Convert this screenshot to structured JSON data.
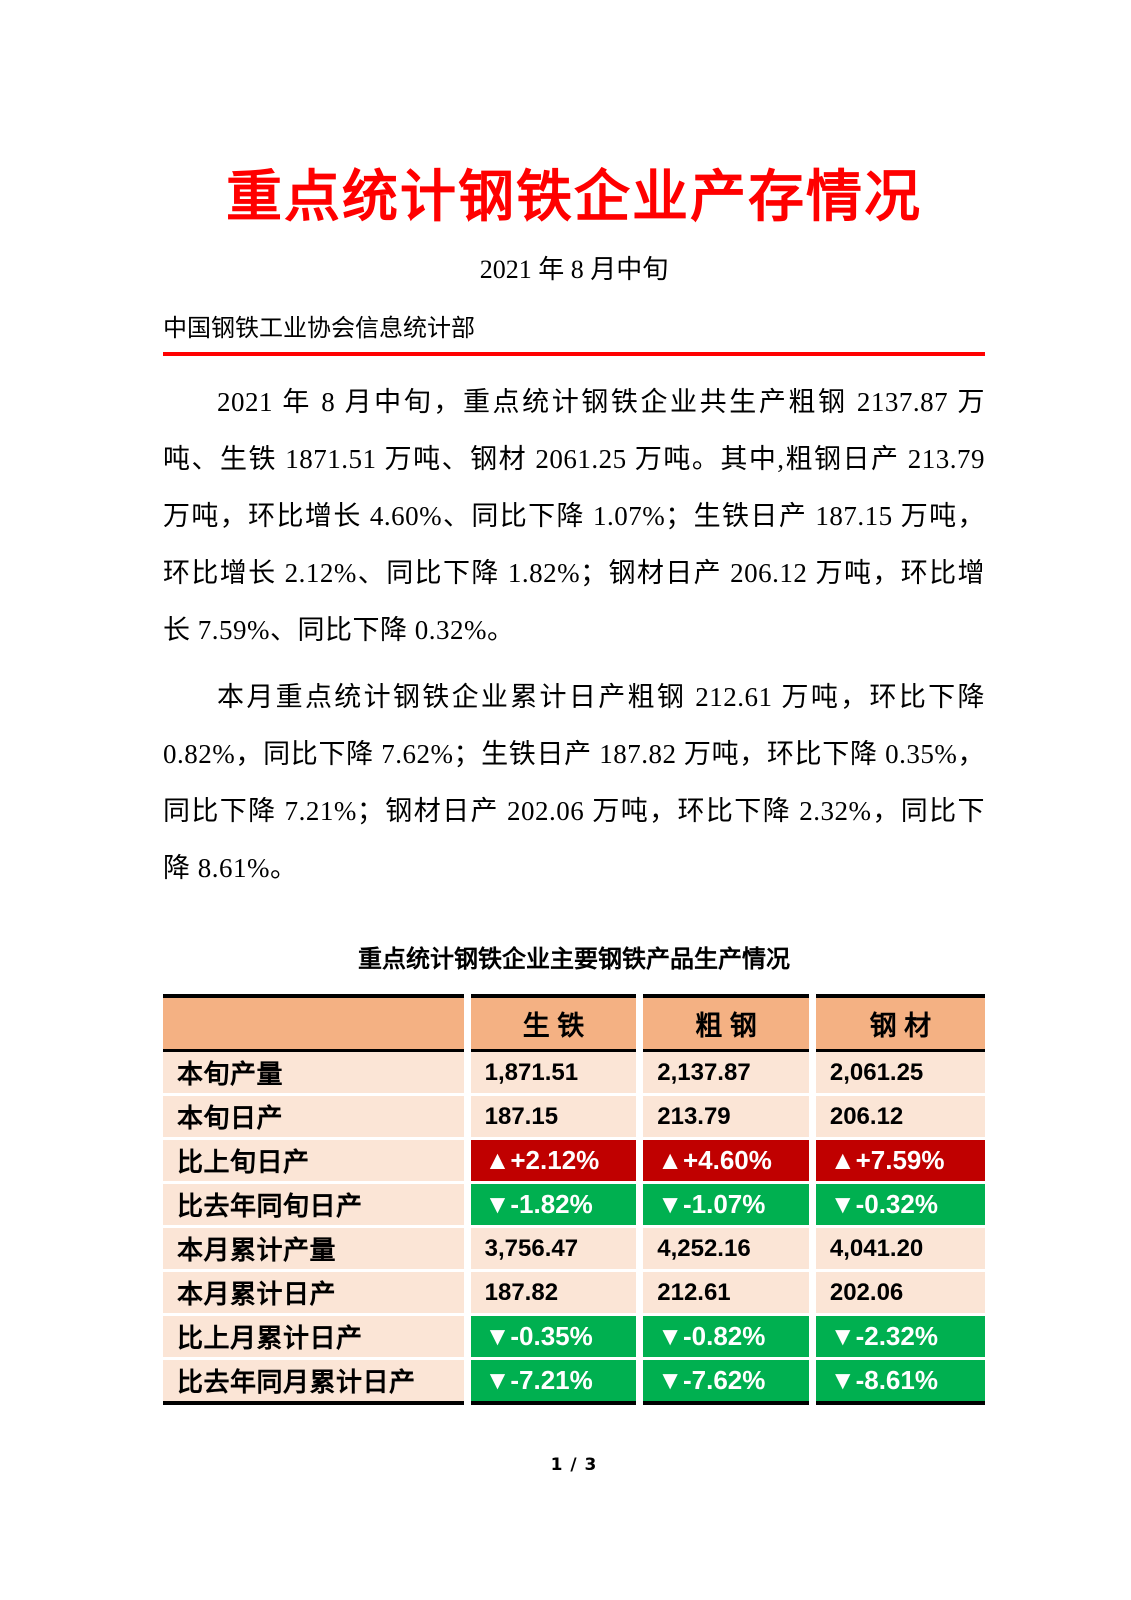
{
  "document": {
    "title": "重点统计钢铁企业产存情况",
    "subtitle": "2021 年 8 月中旬",
    "department": "中国钢铁工业协会信息统计部",
    "paragraphs": {
      "p1": "2021 年 8 月中旬，重点统计钢铁企业共生产粗钢 2137.87 万吨、生铁 1871.51 万吨、钢材 2061.25 万吨。其中,粗钢日产 213.79 万吨，环比增长 4.60%、同比下降 1.07%；生铁日产 187.15 万吨，环比增长 2.12%、同比下降 1.82%；钢材日产 206.12 万吨，环比增长 7.59%、同比下降 0.32%。",
      "p2": "本月重点统计钢铁企业累计日产粗钢 212.61 万吨，环比下降 0.82%，同比下降 7.62%；生铁日产 187.82 万吨，环比下降 0.35%，同比下降 7.21%；钢材日产 202.06 万吨，环比下降 2.32%，同比下降 8.61%。"
    },
    "page_number": "1 / 3"
  },
  "table": {
    "title": "重点统计钢铁企业主要钢铁产品生产情况",
    "corner": "",
    "columns": [
      "生 铁",
      "粗 钢",
      "钢 材"
    ],
    "rows": [
      {
        "label": "本旬产量",
        "type": "plain",
        "values": [
          "1,871.51",
          "2,137.87",
          "2,061.25"
        ]
      },
      {
        "label": "本旬日产",
        "type": "plain",
        "values": [
          "187.15",
          "213.79",
          "206.12"
        ]
      },
      {
        "label": "比上旬日产",
        "type": "up",
        "values": [
          "▲+2.12%",
          "▲+4.60%",
          "▲+7.59%"
        ]
      },
      {
        "label": "比去年同旬日产",
        "type": "down",
        "values": [
          "▼-1.82%",
          "▼-1.07%",
          "▼-0.32%"
        ]
      },
      {
        "label": "本月累计产量",
        "type": "plain",
        "values": [
          "3,756.47",
          "4,252.16",
          "4,041.20"
        ]
      },
      {
        "label": "本月累计日产",
        "type": "plain",
        "values": [
          "187.82",
          "212.61",
          "202.06"
        ]
      },
      {
        "label": "比上月累计日产",
        "type": "down",
        "values": [
          "▼-0.35%",
          "▼-0.82%",
          "▼-2.32%"
        ]
      },
      {
        "label": "比去年同月累计日产",
        "type": "down",
        "values": [
          "▼-7.21%",
          "▼-7.62%",
          "▼-8.61%"
        ]
      }
    ]
  },
  "colors": {
    "title_red": "#FF0000",
    "rule_red": "#FF0000",
    "header_orange": "#F4B183",
    "cell_peach": "#FBE5D6",
    "increase_red": "#C00000",
    "decrease_green": "#00B050",
    "unit_note": "万吨"
  }
}
